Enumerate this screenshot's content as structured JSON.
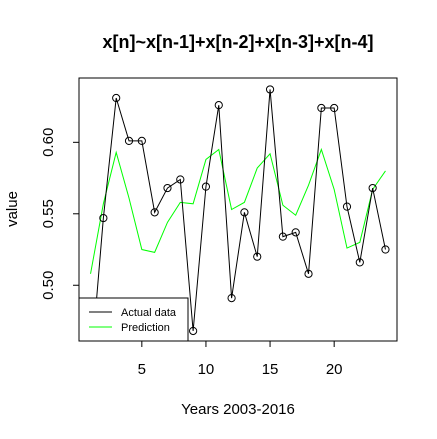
{
  "chart_data": {
    "type": "line",
    "title": "x[n]~x[n-1]+x[n-2]+x[n-3]+x[n-4]",
    "xlabel": "Years 2003-2016",
    "ylabel": "value",
    "xlim": [
      0.1,
      24.9
    ],
    "ylim": [
      0.461,
      0.645
    ],
    "xticks": [
      5,
      10,
      15,
      20
    ],
    "yticks": [
      0.5,
      0.55,
      0.6
    ],
    "ytick_labels": [
      "0.50",
      "0.55",
      "0.60"
    ],
    "grid": false,
    "legend_position": "bottom-left",
    "series": [
      {
        "name": "Actual data",
        "color": "#000000",
        "markers": "open-circle",
        "x": [
          1,
          2,
          3,
          4,
          5,
          6,
          7,
          8,
          9,
          10,
          11,
          12,
          13,
          14,
          15,
          16,
          17,
          18,
          19,
          20,
          21,
          22,
          23,
          24
        ],
        "values": [
          0.44,
          0.547,
          0.631,
          0.601,
          0.601,
          0.551,
          0.568,
          0.574,
          0.468,
          0.569,
          0.626,
          0.491,
          0.551,
          0.52,
          0.637,
          0.534,
          0.537,
          0.508,
          0.624,
          0.624,
          0.555,
          0.516,
          0.568,
          0.525
        ]
      },
      {
        "name": "Prediction",
        "color": "#00ff00",
        "markers": "none",
        "x": [
          1,
          2,
          3,
          4,
          5,
          6,
          7,
          8,
          9,
          10,
          11,
          12,
          13,
          14,
          15,
          16,
          17,
          18,
          19,
          20,
          21,
          22,
          23,
          24
        ],
        "values": [
          0.508,
          0.557,
          0.593,
          0.561,
          0.525,
          0.523,
          0.544,
          0.558,
          0.557,
          0.588,
          0.595,
          0.553,
          0.558,
          0.582,
          0.592,
          0.556,
          0.549,
          0.57,
          0.595,
          0.567,
          0.526,
          0.53,
          0.567,
          0.58
        ]
      }
    ]
  }
}
